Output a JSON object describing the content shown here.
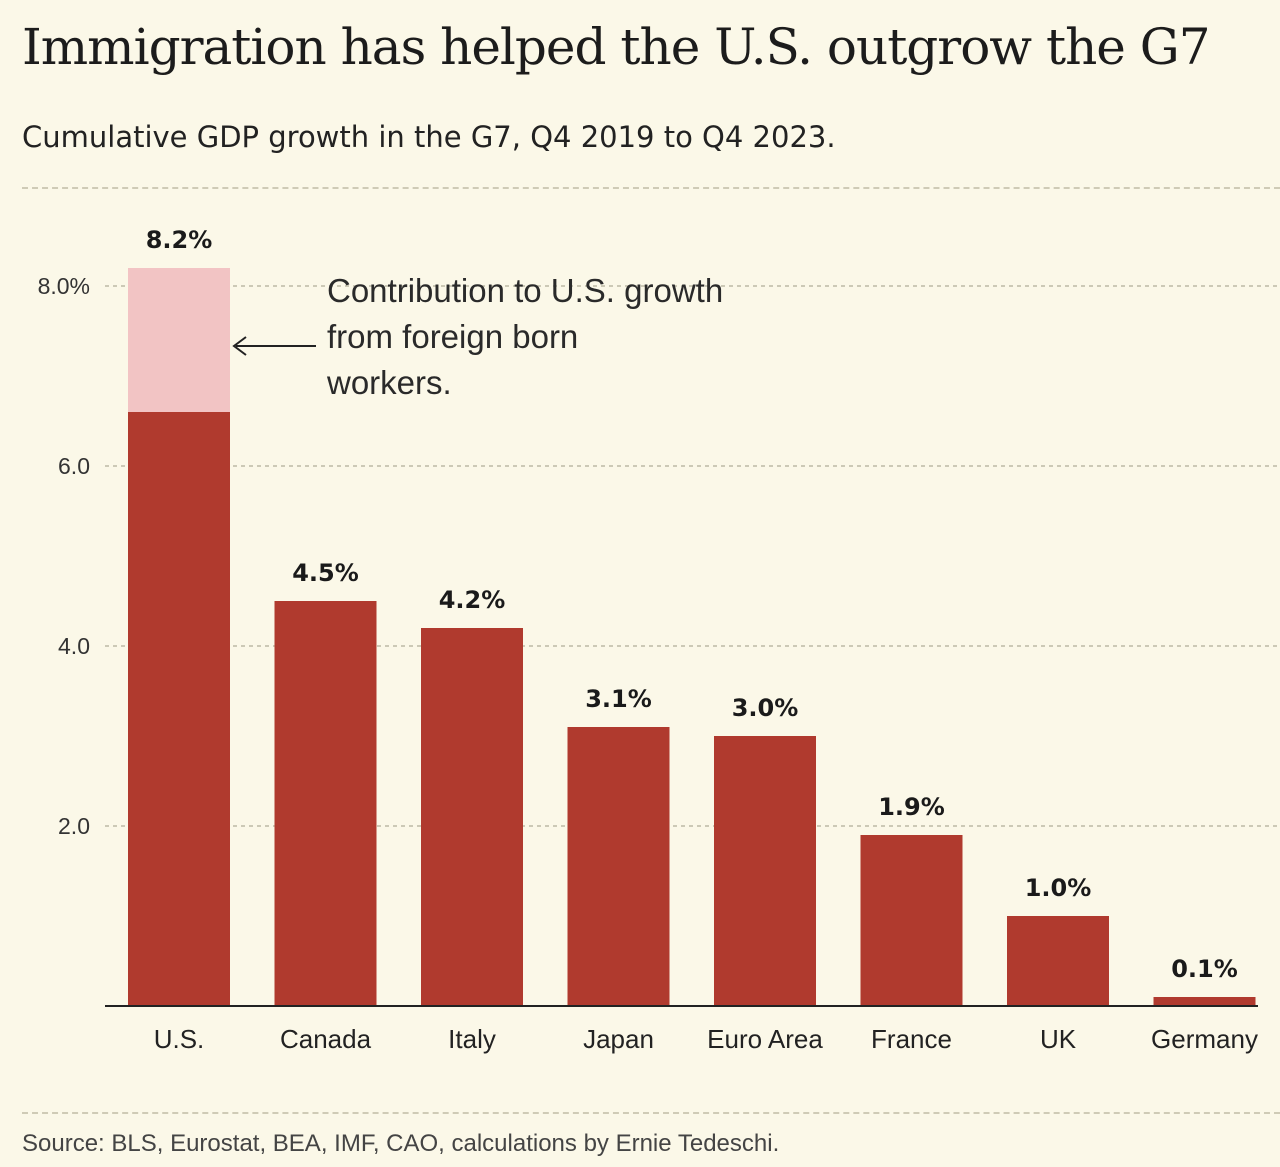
{
  "header": {
    "title": "Immigration has helped the U.S. outgrow the G7",
    "subtitle": "Cumulative GDP growth in the G7, Q4 2019 to Q4 2023."
  },
  "footer": {
    "source": "Source: BLS, Eurostat, BEA, IMF, CAO, calculations by Ernie Tedeschi."
  },
  "colors": {
    "bar": "#b03a2e",
    "highlight": "#f2c4c4",
    "background": "#fbf8e8",
    "grid": "#bdb9a6"
  },
  "chart_data": {
    "type": "bar",
    "stacked_first_bar": true,
    "title": "Immigration has helped the U.S. outgrow the G7",
    "subtitle": "Cumulative GDP growth in the G7, Q4 2019 to Q4 2023.",
    "categories": [
      "U.S.",
      "Canada",
      "Italy",
      "Japan",
      "Euro Area",
      "France",
      "UK",
      "Germany"
    ],
    "values": [
      8.2,
      4.5,
      4.2,
      3.1,
      3.0,
      1.9,
      1.0,
      0.1
    ],
    "value_labels": [
      "8.2%",
      "4.5%",
      "4.2%",
      "3.1%",
      "3.0%",
      "1.9%",
      "1.0%",
      "0.1%"
    ],
    "us_foreign_born_contribution": 1.6,
    "us_base_value": 6.6,
    "ylim": [
      0,
      8.2
    ],
    "yticks": [
      2,
      4,
      6,
      8
    ],
    "ytick_labels": [
      "2.0",
      "4.0",
      "6.0",
      "8.0%"
    ],
    "grid": true,
    "annotation": {
      "lines": [
        "Contribution to U.S. growth",
        "from foreign born",
        "workers."
      ]
    }
  }
}
